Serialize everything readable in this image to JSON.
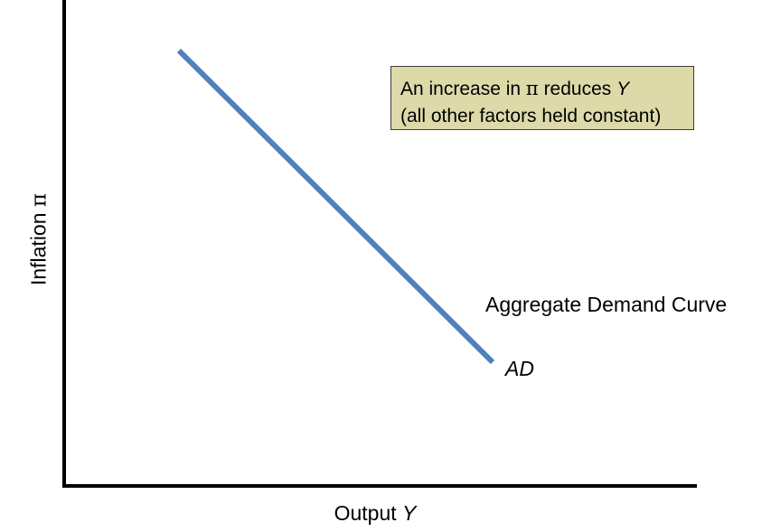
{
  "axes": {
    "y_label_text": "Inflation ",
    "y_label_symbol": "π",
    "x_label_text": "Output ",
    "x_label_symbol": "Y"
  },
  "note": {
    "line1_text": "An increase in ",
    "line1_pi": "π",
    "line1_mid": " reduces ",
    "line1_y": "Y",
    "line2": "(all other factors held constant)"
  },
  "curve": {
    "title": "Aggregate Demand Curve",
    "label": "AD",
    "color": "#4f81bd"
  },
  "colors": {
    "note_background": "#ddd9a9",
    "axis": "#000000"
  }
}
